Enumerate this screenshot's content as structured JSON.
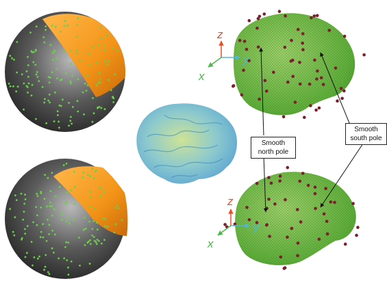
{
  "axes": {
    "x": "x",
    "y": "y",
    "z": "z"
  },
  "colors": {
    "axis_x": "#4db84a",
    "axis_y": "#4fb8d8",
    "axis_z": "#e8502a",
    "mesh_green": "#5fae3a",
    "sphere_cap_orange": "#f59a1e",
    "sphere_dark": "#2c2c2c",
    "marker_red": "#7a1f2e",
    "sphere_dot_green": "#6bd04a",
    "brain_blue": "#4aa3d8"
  },
  "annotations": {
    "north_pole": "Smooth\nnorth pole",
    "south_pole": "Smooth\nsouth pole"
  }
}
